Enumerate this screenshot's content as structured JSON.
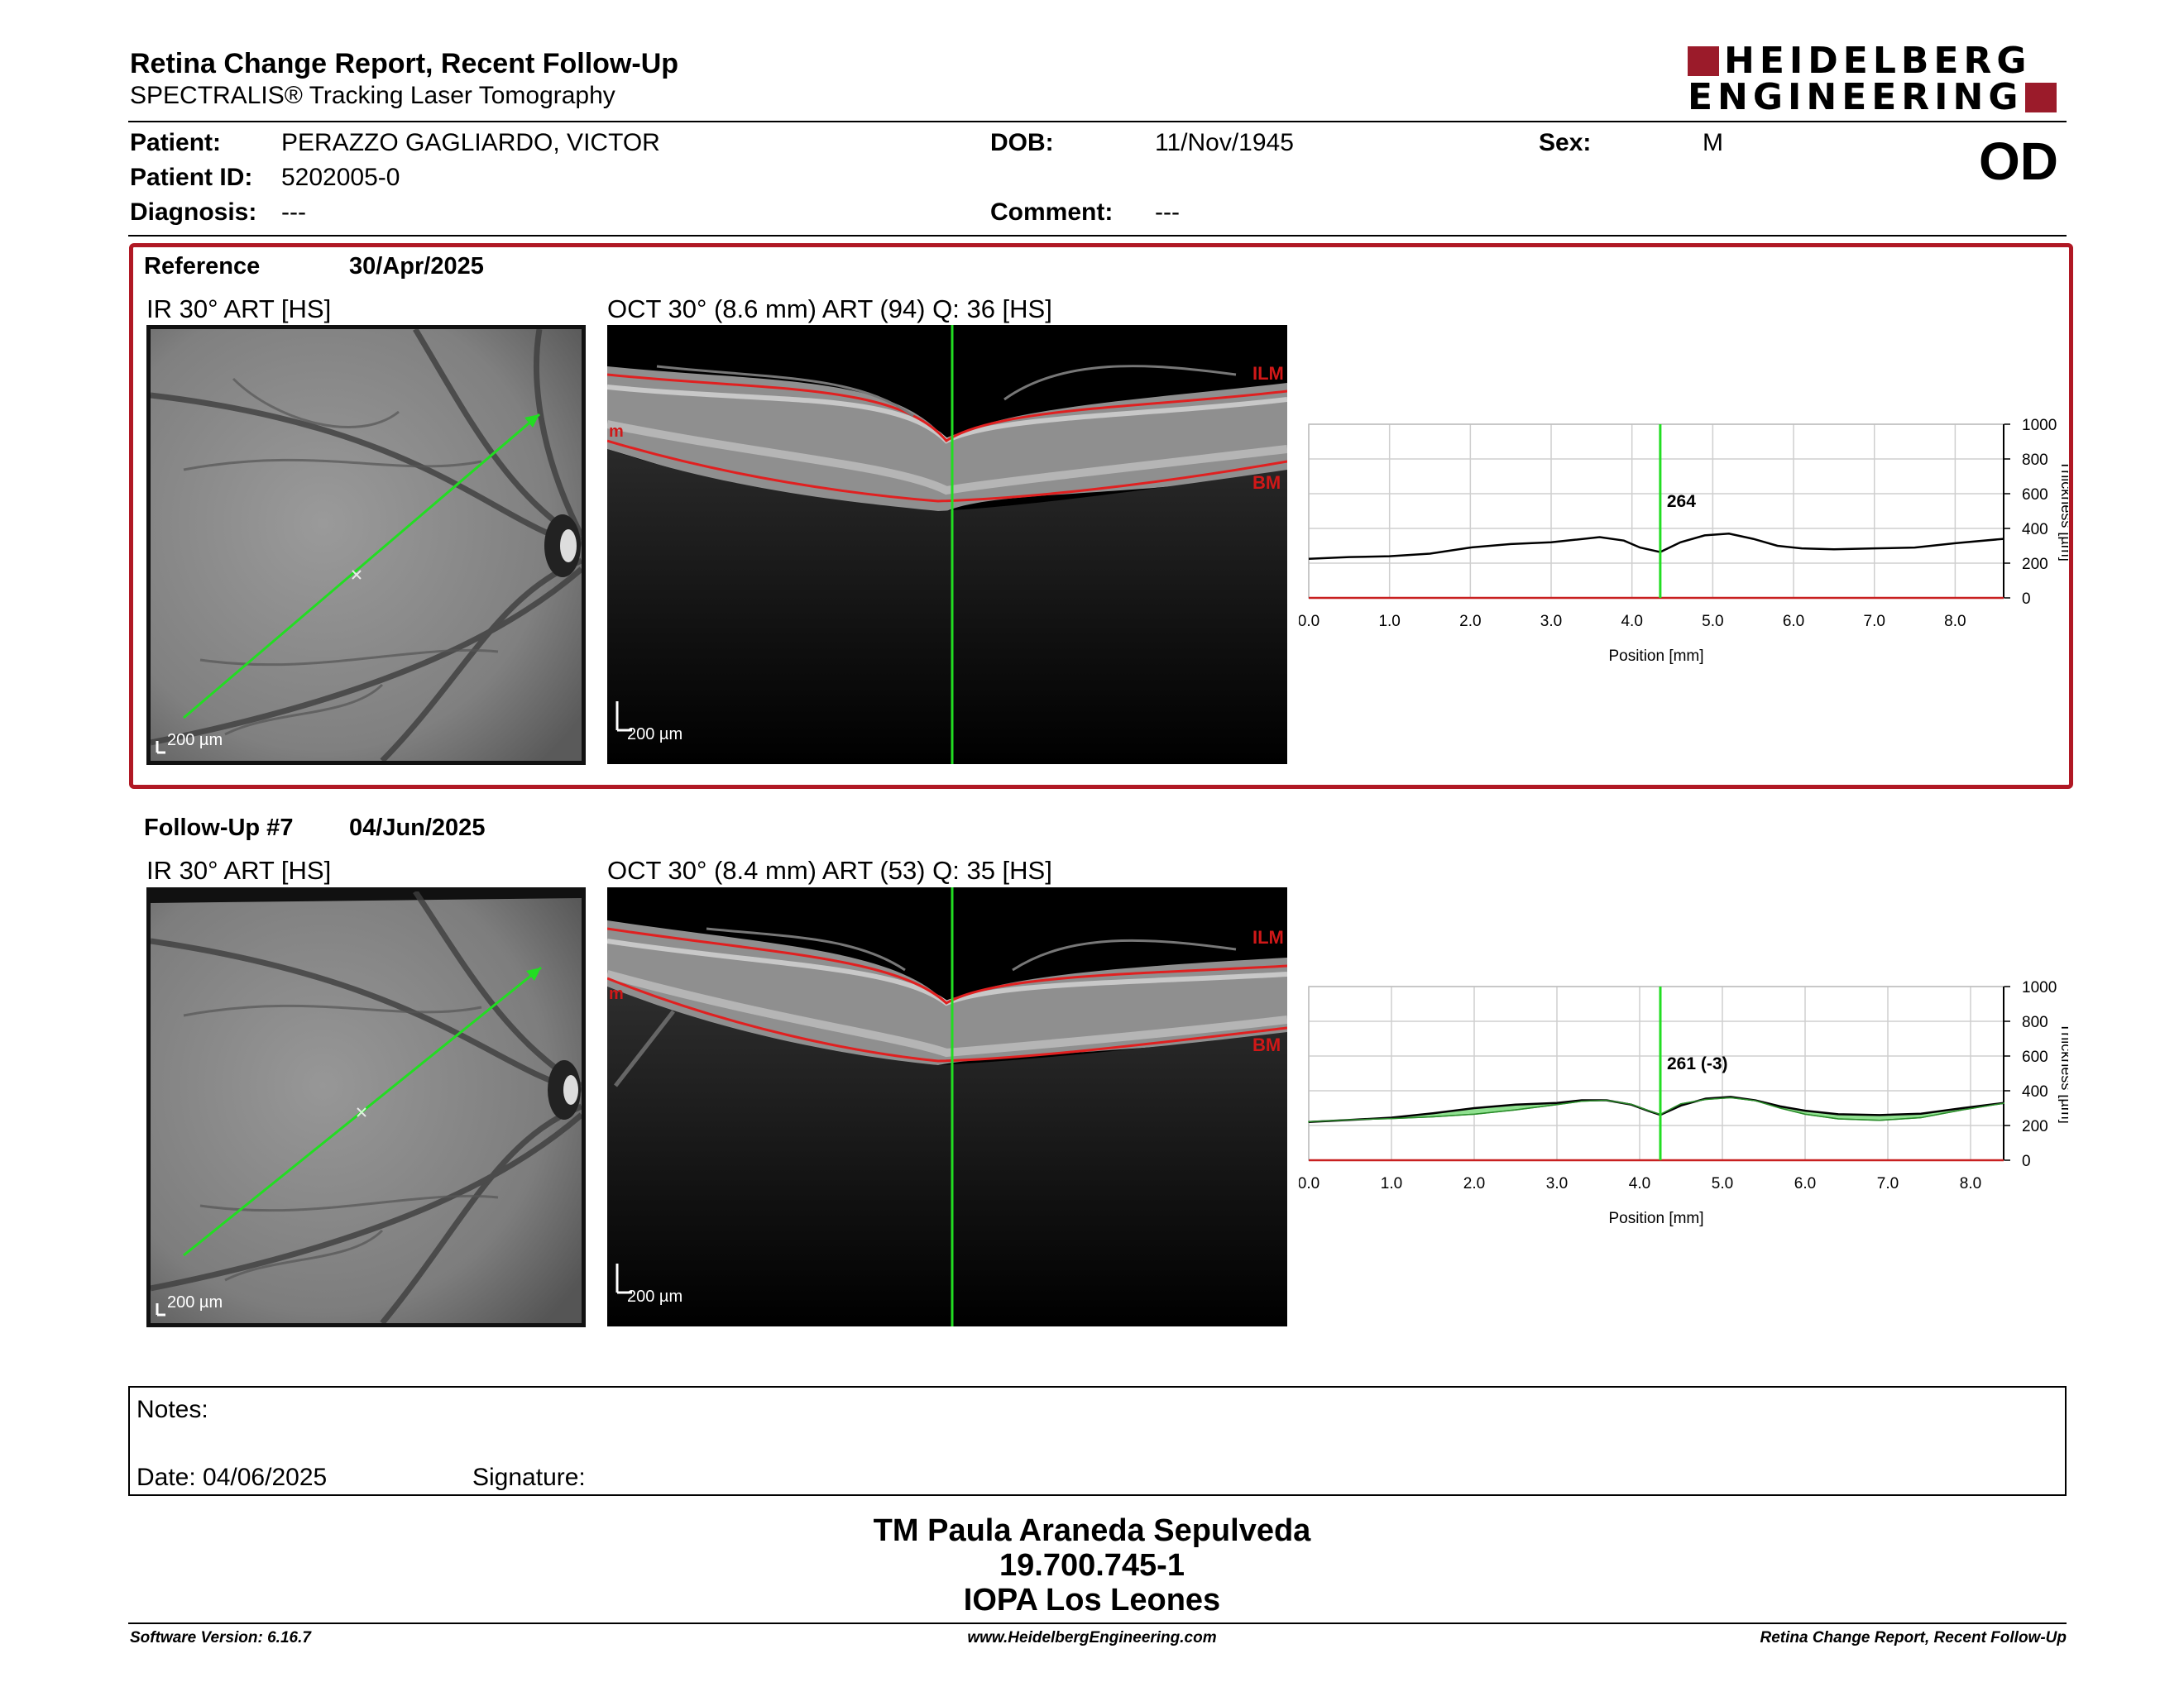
{
  "header": {
    "title": "Retina Change Report, Recent Follow-Up",
    "subtitle": "SPECTRALIS® Tracking Laser Tomography",
    "logo_line1": "HEIDELBERG",
    "logo_line2": "ENGINEERING"
  },
  "patient": {
    "patient_label": "Patient:",
    "patient_value": "PERAZZO GAGLIARDO, VICTOR",
    "id_label": "Patient ID:",
    "id_value": "5202005-0",
    "diagnosis_label": "Diagnosis:",
    "diagnosis_value": "---",
    "dob_label": "DOB:",
    "dob_value": "11/Nov/1945",
    "comment_label": "Comment:",
    "comment_value": "---",
    "sex_label": "Sex:",
    "sex_value": "M",
    "eye": "OD"
  },
  "reference": {
    "label": "Reference",
    "date": "30/Apr/2025",
    "ir_label": "IR 30° ART [HS]",
    "oct_label": "OCT 30° (8.6 mm) ART (94) Q: 36 [HS]",
    "scale": "200 µm",
    "ilm": "ILM",
    "bm": "BM",
    "m": "m"
  },
  "followup": {
    "label": "Follow-Up #7",
    "date": "04/Jun/2025",
    "ir_label": "IR 30° ART [HS]",
    "oct_label": "OCT 30° (8.4 mm) ART (53) Q: 35 [HS]",
    "scale": "200 µm",
    "ilm": "ILM",
    "bm": "BM",
    "m": "m"
  },
  "chart_data": [
    {
      "type": "line",
      "xlabel": "Position [mm]",
      "ylabel": "Thickness [µm]",
      "xlim": [
        0,
        8.6
      ],
      "ylim": [
        0,
        1000
      ],
      "xticks": [
        "0.0",
        "1.0",
        "2.0",
        "3.0",
        "4.0",
        "5.0",
        "6.0",
        "7.0",
        "8.0"
      ],
      "yticks": [
        "0",
        "200",
        "400",
        "600",
        "800",
        "1000"
      ],
      "cursor_x": 4.35,
      "cursor_label": "264",
      "series": [
        {
          "x": [
            0.0,
            0.5,
            1.0,
            1.5,
            2.0,
            2.5,
            3.0,
            3.3,
            3.6,
            3.9,
            4.1,
            4.35,
            4.6,
            4.9,
            5.2,
            5.5,
            5.8,
            6.1,
            6.5,
            7.0,
            7.5,
            8.0,
            8.6
          ],
          "y": [
            225,
            235,
            240,
            255,
            290,
            310,
            320,
            335,
            350,
            330,
            290,
            264,
            320,
            360,
            370,
            340,
            300,
            285,
            280,
            285,
            290,
            315,
            340
          ]
        }
      ]
    },
    {
      "type": "line",
      "xlabel": "Position [mm]",
      "ylabel": "Thickness [µm]",
      "xlim": [
        0,
        8.4
      ],
      "ylim": [
        0,
        1000
      ],
      "xticks": [
        "0.0",
        "1.0",
        "2.0",
        "3.0",
        "4.0",
        "5.0",
        "6.0",
        "7.0",
        "8.0"
      ],
      "yticks": [
        "0",
        "200",
        "400",
        "600",
        "800",
        "1000"
      ],
      "cursor_x": 4.25,
      "cursor_label": "261 (-3)",
      "series": [
        {
          "x": [
            0.0,
            0.5,
            1.0,
            1.5,
            2.0,
            2.5,
            3.0,
            3.3,
            3.6,
            3.9,
            4.1,
            4.25,
            4.5,
            4.8,
            5.1,
            5.4,
            5.7,
            6.0,
            6.4,
            6.9,
            7.4,
            7.9,
            8.4
          ],
          "y": [
            220,
            232,
            245,
            270,
            300,
            320,
            330,
            345,
            345,
            320,
            285,
            261,
            315,
            355,
            365,
            345,
            310,
            285,
            265,
            260,
            268,
            300,
            330
          ]
        },
        {
          "x": [
            0.0,
            0.5,
            1.0,
            1.5,
            2.0,
            2.5,
            3.0,
            3.3,
            3.6,
            3.9,
            4.1,
            4.25,
            4.5,
            4.8,
            5.1,
            5.4,
            5.7,
            6.0,
            6.4,
            6.9,
            7.4,
            7.9,
            8.4
          ],
          "y": [
            222,
            233,
            240,
            250,
            265,
            290,
            320,
            340,
            345,
            322,
            287,
            264,
            325,
            350,
            360,
            343,
            300,
            265,
            238,
            230,
            245,
            290,
            328
          ]
        }
      ]
    }
  ],
  "notes": {
    "notes_label": "Notes:",
    "date_label": "Date: 04/06/2025",
    "signature_label": "Signature:"
  },
  "footer": {
    "name": "TM Paula Araneda Sepulveda",
    "id": "19.700.745-1",
    "clinic": "IOPA Los Leones",
    "software": "Software Version: 6.16.7",
    "website": "www.HeidelbergEngineering.com",
    "report": "Retina Change Report, Recent Follow-Up"
  }
}
